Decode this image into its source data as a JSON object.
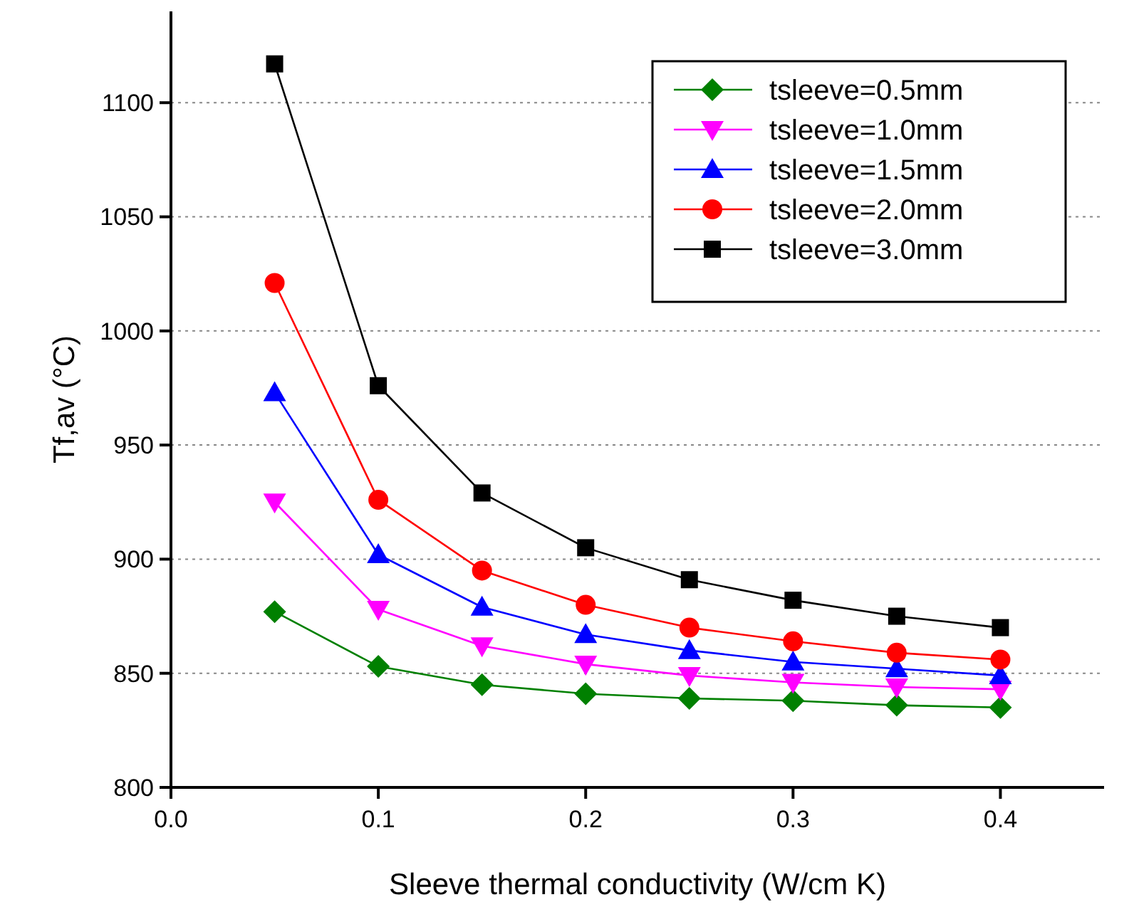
{
  "chart_data": {
    "type": "line",
    "xlabel": "Sleeve thermal conductivity (W/cm K)",
    "ylabel": "Tf,av (°C)",
    "x": [
      0.05,
      0.1,
      0.15,
      0.2,
      0.25,
      0.3,
      0.35,
      0.4
    ],
    "xlim": [
      0,
      0.45
    ],
    "xticks": [
      {
        "value": 0,
        "label": "0.0"
      },
      {
        "value": 0.1,
        "label": "0.1"
      },
      {
        "value": 0.2,
        "label": "0.2"
      },
      {
        "value": 0.3,
        "label": "0.3"
      },
      {
        "value": 0.4,
        "label": "0.4"
      }
    ],
    "ylim": [
      800,
      1140
    ],
    "yticks": [
      800,
      850,
      900,
      950,
      1000,
      1050,
      1100
    ],
    "grid": "y",
    "legend": "top right",
    "line_style": "solid",
    "series": [
      {
        "name": "tsleeve=0.5mm",
        "color": "#008000",
        "marker": "diamond",
        "values": [
          877,
          853,
          845,
          841,
          839,
          838,
          836,
          835
        ]
      },
      {
        "name": "tsleeve=1.0mm",
        "color": "#ff00ff",
        "marker": "triangle-down",
        "values": [
          925,
          878,
          862,
          854,
          849,
          846,
          844,
          843
        ]
      },
      {
        "name": "tsleeve=1.5mm",
        "color": "#0000ff",
        "marker": "triangle",
        "values": [
          973,
          902,
          879,
          867,
          860,
          855,
          852,
          849
        ]
      },
      {
        "name": "tsleeve=2.0mm",
        "color": "#ff0000",
        "marker": "circle",
        "values": [
          1021,
          926,
          895,
          880,
          870,
          864,
          859,
          856
        ]
      },
      {
        "name": "tsleeve=3.0mm",
        "color": "#000000",
        "marker": "square",
        "values": [
          1117,
          976,
          929,
          905,
          891,
          882,
          875,
          870
        ]
      }
    ]
  }
}
